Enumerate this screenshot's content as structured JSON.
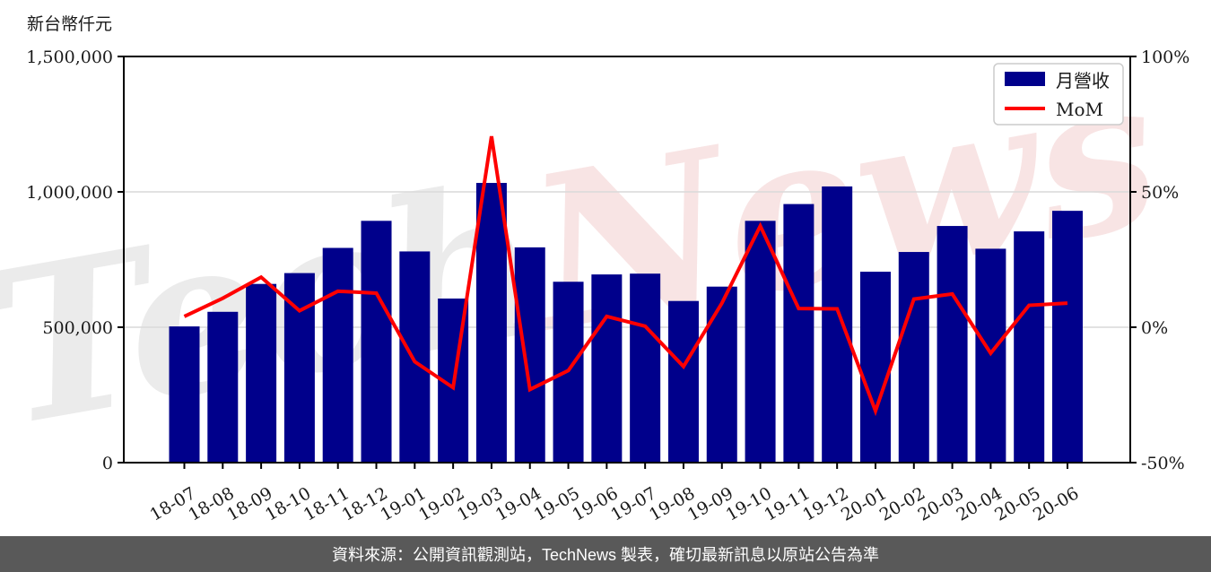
{
  "footer": {
    "text": "資料來源：公開資訊觀測站，TechNews 製表，確切最新訊息以原站公告為準",
    "background": "#595959",
    "text_color": "#ffffff"
  },
  "watermark": {
    "text": "TechNews",
    "gray_part": "Tech",
    "pink_part": "News",
    "gray_color": "#ebebeb",
    "pink_color": "#f8e4e4"
  },
  "legend": {
    "bar_label": "月營收",
    "line_label": "MoM",
    "position": "top-right"
  },
  "chart_data": {
    "type": "bar+line",
    "title": "",
    "categories": [
      "18-07",
      "18-08",
      "18-09",
      "18-10",
      "18-11",
      "18-12",
      "19-01",
      "19-02",
      "19-03",
      "19-04",
      "19-05",
      "19-06",
      "19-07",
      "19-08",
      "19-09",
      "19-10",
      "19-11",
      "19-12",
      "20-01",
      "20-02",
      "20-03",
      "20-04",
      "20-05",
      "20-06"
    ],
    "series": [
      {
        "name": "月營收",
        "kind": "bar",
        "axis": "left",
        "color": "#00008b",
        "values": [
          503000,
          557000,
          660000,
          700000,
          793000,
          893000,
          780000,
          606000,
          1033000,
          795000,
          668000,
          695000,
          698000,
          597000,
          650000,
          893000,
          955000,
          1020000,
          705000,
          778000,
          874000,
          790000,
          854000,
          930000
        ]
      },
      {
        "name": "MoM",
        "kind": "line",
        "axis": "right",
        "color": "#ff0000",
        "unit": "%",
        "values": [
          4.0,
          10.7,
          18.5,
          6.1,
          13.3,
          12.6,
          -12.7,
          -22.3,
          70.5,
          -23.0,
          -16.0,
          4.0,
          0.4,
          -14.5,
          8.9,
          37.4,
          6.9,
          6.8,
          -30.9,
          10.4,
          12.3,
          -9.6,
          8.1,
          8.9
        ]
      }
    ],
    "left_axis": {
      "title": "新台幣仟元",
      "range": [
        0,
        1500000
      ],
      "tick_values": [
        0,
        500000,
        1000000,
        1500000
      ],
      "tick_labels": [
        "0",
        "500,000",
        "1,000,000",
        "1,500,000"
      ],
      "grid_values": [
        500000,
        1000000
      ]
    },
    "right_axis": {
      "range": [
        -50,
        100
      ],
      "tick_values": [
        -50,
        0,
        50,
        100
      ],
      "tick_labels": [
        "-50%",
        "0%",
        "50%",
        "100%"
      ]
    },
    "grid": true,
    "legend_position": "top-right"
  }
}
